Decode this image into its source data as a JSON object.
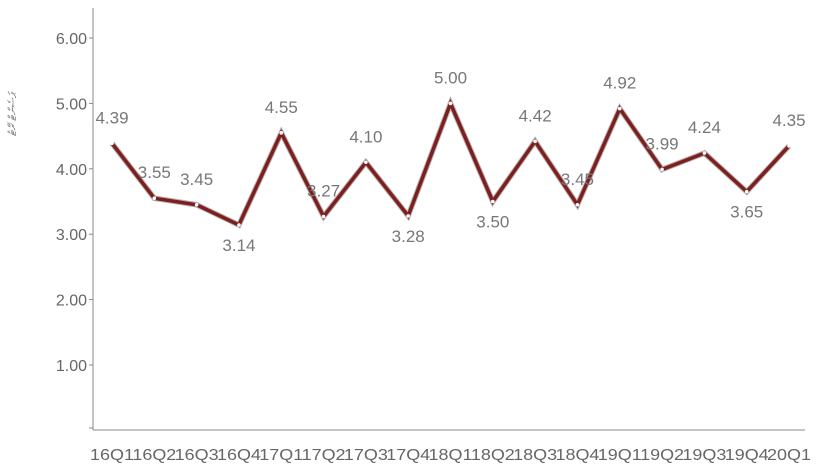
{
  "chart_data": {
    "type": "line",
    "title": "",
    "xlabel": "",
    "ylabel": "ޕަސެންޓް ރޭޓު",
    "categories": [
      "16Q1",
      "16Q2",
      "16Q3",
      "16Q4",
      "17Q1",
      "17Q2",
      "17Q3",
      "17Q4",
      "18Q1",
      "18Q2",
      "18Q3",
      "18Q4",
      "19Q1",
      "19Q2",
      "19Q3",
      "19Q4",
      "20Q1"
    ],
    "series": [
      {
        "values": [
          4.39,
          3.55,
          3.45,
          3.14,
          4.55,
          3.27,
          4.1,
          3.28,
          5.0,
          3.5,
          4.42,
          3.45,
          4.92,
          3.99,
          4.24,
          3.65,
          4.35
        ],
        "labels": [
          "4.39",
          "3.55",
          "3.45",
          "3.14",
          "4.55",
          "3.27",
          "4.10",
          "3.28",
          "5.00",
          "3.50",
          "4.42",
          "3.45",
          "4.92",
          "3.99",
          "4.24",
          "3.65",
          "4.35"
        ]
      }
    ],
    "ylim": [
      0,
      6.2
    ],
    "yticks": [
      1,
      2,
      3,
      4,
      5,
      6
    ],
    "ytick_labels": [
      "1.00",
      "2.00",
      "3.00",
      "4.00",
      "5.00",
      "6.00"
    ],
    "grid": false,
    "legend": "none",
    "colors": {
      "line": "#7b1f1f",
      "axis": "#888888",
      "text": "#666666",
      "label": "#777777"
    }
  }
}
